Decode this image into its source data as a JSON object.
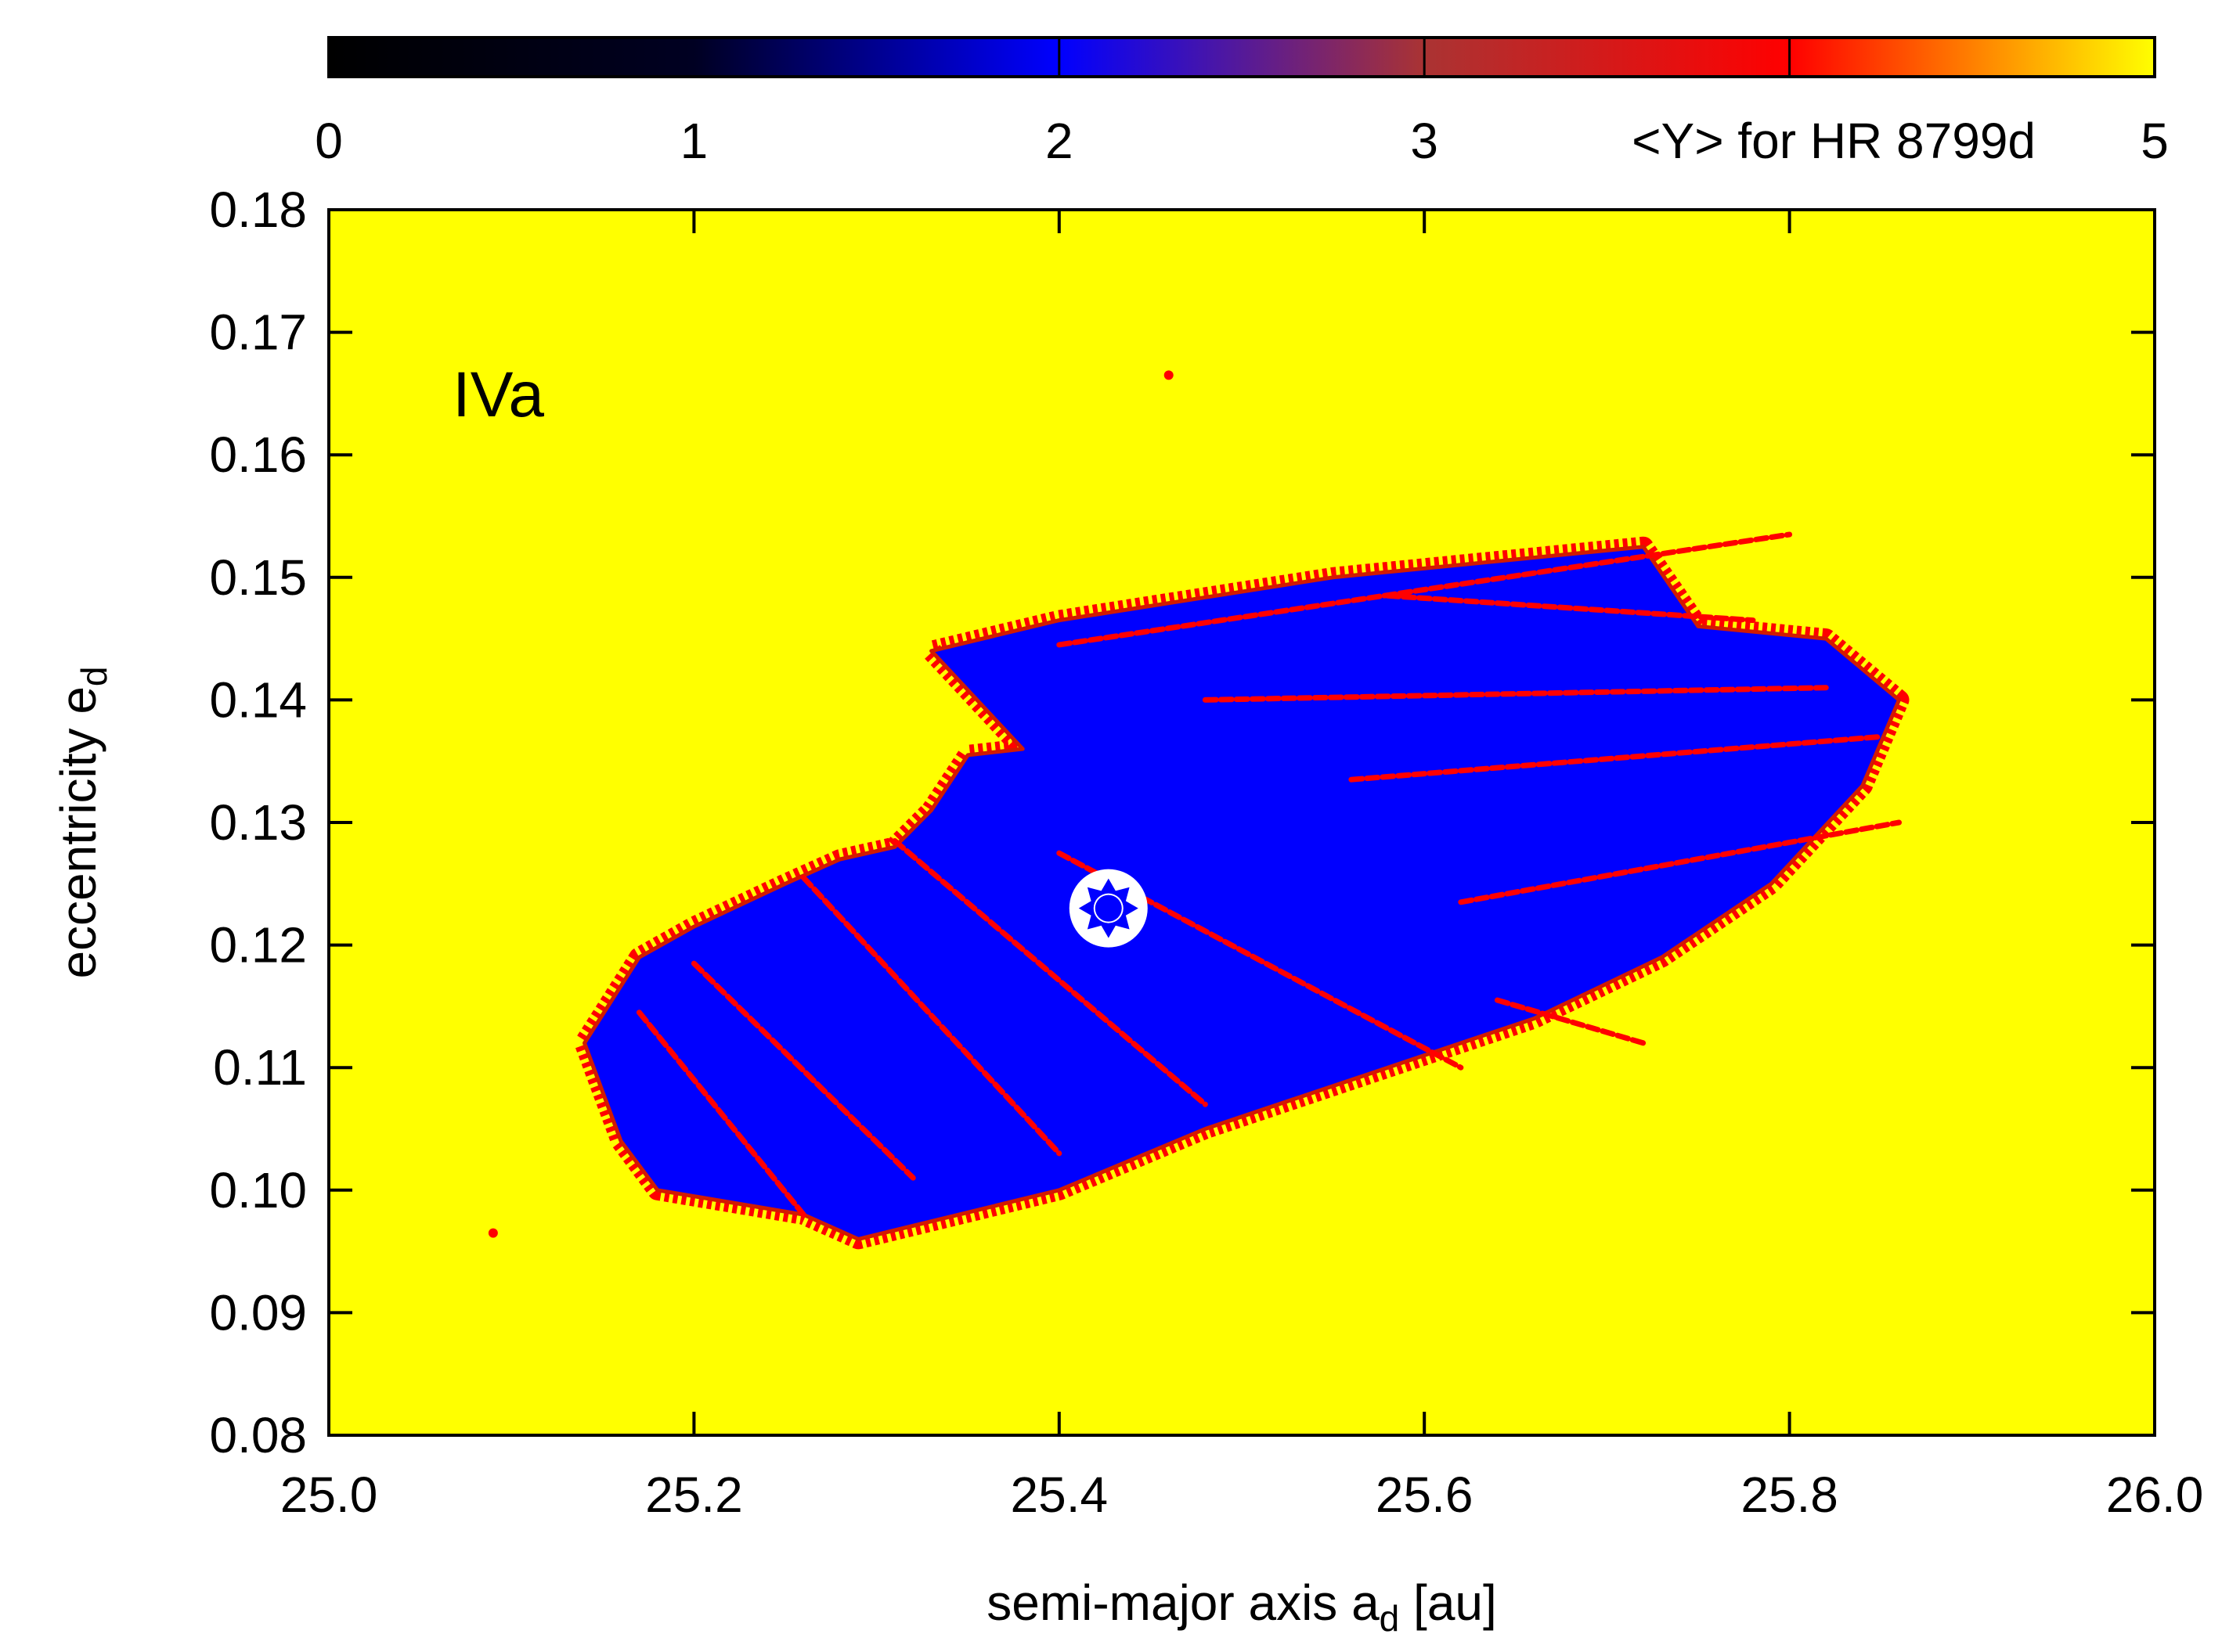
{
  "chart_data": {
    "type": "heatmap",
    "panel_label": "IVa",
    "colorbar": {
      "label": "<Y> for HR 8799d",
      "range": [
        0,
        5
      ],
      "ticks": [
        "0",
        "1",
        "2",
        "3",
        "5"
      ],
      "tick_values": [
        0,
        1,
        2,
        3,
        5
      ],
      "gridlines_at": [
        2,
        3,
        4
      ],
      "color_stops": [
        {
          "value": 0,
          "color": "#000000"
        },
        {
          "value": 1,
          "color": "#000022"
        },
        {
          "value": 2,
          "color": "#0000ff"
        },
        {
          "value": 3,
          "color": "#aa3333"
        },
        {
          "value": 4,
          "color": "#ff0000"
        },
        {
          "value": 5,
          "color": "#ffff00"
        }
      ]
    },
    "x_axis": {
      "label_main": "semi-major axis a",
      "label_sub": "d",
      "label_unit": " [au]",
      "range": [
        25.0,
        26.0
      ],
      "ticks": [
        "25.0",
        "25.2",
        "25.4",
        "25.6",
        "25.8",
        "26.0"
      ],
      "tick_values": [
        25.0,
        25.2,
        25.4,
        25.6,
        25.8,
        26.0
      ]
    },
    "y_axis": {
      "label_main": "eccentricity e",
      "label_sub": "d",
      "range": [
        0.08,
        0.18
      ],
      "ticks": [
        "0.08",
        "0.09",
        "0.10",
        "0.11",
        "0.12",
        "0.13",
        "0.14",
        "0.15",
        "0.16",
        "0.17",
        "0.18"
      ],
      "tick_values": [
        0.08,
        0.09,
        0.1,
        0.11,
        0.12,
        0.13,
        0.14,
        0.15,
        0.16,
        0.17,
        0.18
      ]
    },
    "background_value": 5,
    "stable_region": {
      "value": 2,
      "outline": [
        [
          25.86,
          0.14
        ],
        [
          25.82,
          0.145
        ],
        [
          25.75,
          0.146
        ],
        [
          25.72,
          0.1525
        ],
        [
          25.55,
          0.15
        ],
        [
          25.4,
          0.1465
        ],
        [
          25.33,
          0.144
        ],
        [
          25.38,
          0.136
        ],
        [
          25.35,
          0.1355
        ],
        [
          25.33,
          0.131
        ],
        [
          25.31,
          0.128
        ],
        [
          25.28,
          0.127
        ],
        [
          25.25,
          0.125
        ],
        [
          25.2,
          0.1215
        ],
        [
          25.17,
          0.119
        ],
        [
          25.14,
          0.112
        ],
        [
          25.16,
          0.104
        ],
        [
          25.18,
          0.1
        ],
        [
          25.26,
          0.098
        ],
        [
          25.29,
          0.096
        ],
        [
          25.4,
          0.1
        ],
        [
          25.48,
          0.105
        ],
        [
          25.58,
          0.11
        ],
        [
          25.66,
          0.114
        ],
        [
          25.73,
          0.119
        ],
        [
          25.79,
          0.125
        ],
        [
          25.84,
          0.133
        ]
      ],
      "chaotic_streaks": [
        {
          "from": [
            25.4,
            0.1445
          ],
          "to": [
            25.8,
            0.1535
          ],
          "value": 4
        },
        {
          "from": [
            25.58,
            0.1485
          ],
          "to": [
            25.78,
            0.1465
          ],
          "value": 4
        },
        {
          "from": [
            25.48,
            0.14
          ],
          "to": [
            25.82,
            0.141
          ],
          "value": 4
        },
        {
          "from": [
            25.56,
            0.1335
          ],
          "to": [
            25.85,
            0.137
          ],
          "value": 4
        },
        {
          "from": [
            25.62,
            0.1235
          ],
          "to": [
            25.86,
            0.13
          ],
          "value": 4
        },
        {
          "from": [
            25.4,
            0.1275
          ],
          "to": [
            25.62,
            0.11
          ],
          "value": 4
        },
        {
          "from": [
            25.31,
            0.1285
          ],
          "to": [
            25.48,
            0.107
          ],
          "value": 4
        },
        {
          "from": [
            25.26,
            0.1255
          ],
          "to": [
            25.4,
            0.103
          ],
          "value": 4
        },
        {
          "from": [
            25.2,
            0.1185
          ],
          "to": [
            25.32,
            0.101
          ],
          "value": 4
        },
        {
          "from": [
            25.17,
            0.1145
          ],
          "to": [
            25.26,
            0.098
          ],
          "value": 4
        },
        {
          "from": [
            25.64,
            0.1155
          ],
          "to": [
            25.72,
            0.112
          ],
          "value": 4
        }
      ],
      "isolated_points": [
        {
          "x": 25.09,
          "y": 0.0965,
          "value": 4
        },
        {
          "x": 25.46,
          "y": 0.1665,
          "value": 4
        }
      ]
    },
    "nominal_solution": {
      "x": 25.427,
      "y": 0.123,
      "marker": "white-circle-star"
    }
  }
}
